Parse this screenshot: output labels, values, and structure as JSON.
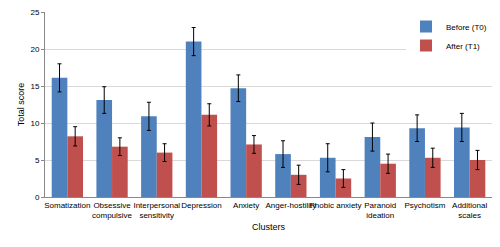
{
  "chart_data": {
    "type": "bar",
    "x_label": "Clusters",
    "y_label": "Total score",
    "categories": [
      "Somatization",
      "Obsessive compulsive",
      "Interpersonal sensitivity",
      "Depression",
      "Anxiety",
      "Anger-hostility",
      "Phobic anxiety",
      "Paranoid ideation",
      "Psychotism",
      "Additional scales"
    ],
    "series": [
      {
        "name": "Before (T0)",
        "color": "#4f81bd",
        "values": [
          16.1,
          13.1,
          10.9,
          21.0,
          14.7,
          5.8,
          5.3,
          8.1,
          9.3,
          9.4
        ],
        "errors": [
          1.9,
          1.8,
          1.9,
          1.9,
          1.8,
          1.8,
          1.9,
          1.9,
          1.8,
          1.9
        ]
      },
      {
        "name": "After (T1)",
        "color": "#c0504d",
        "values": [
          8.2,
          6.8,
          6.0,
          11.1,
          7.1,
          3.0,
          2.5,
          4.5,
          5.3,
          5.0
        ],
        "errors": [
          1.3,
          1.2,
          1.2,
          1.5,
          1.2,
          1.3,
          1.2,
          1.3,
          1.3,
          1.3
        ]
      }
    ],
    "ylim": [
      0,
      25
    ],
    "yticks": [
      0,
      5,
      10,
      15,
      20,
      25
    ],
    "grid": true,
    "legend": "top-right"
  }
}
